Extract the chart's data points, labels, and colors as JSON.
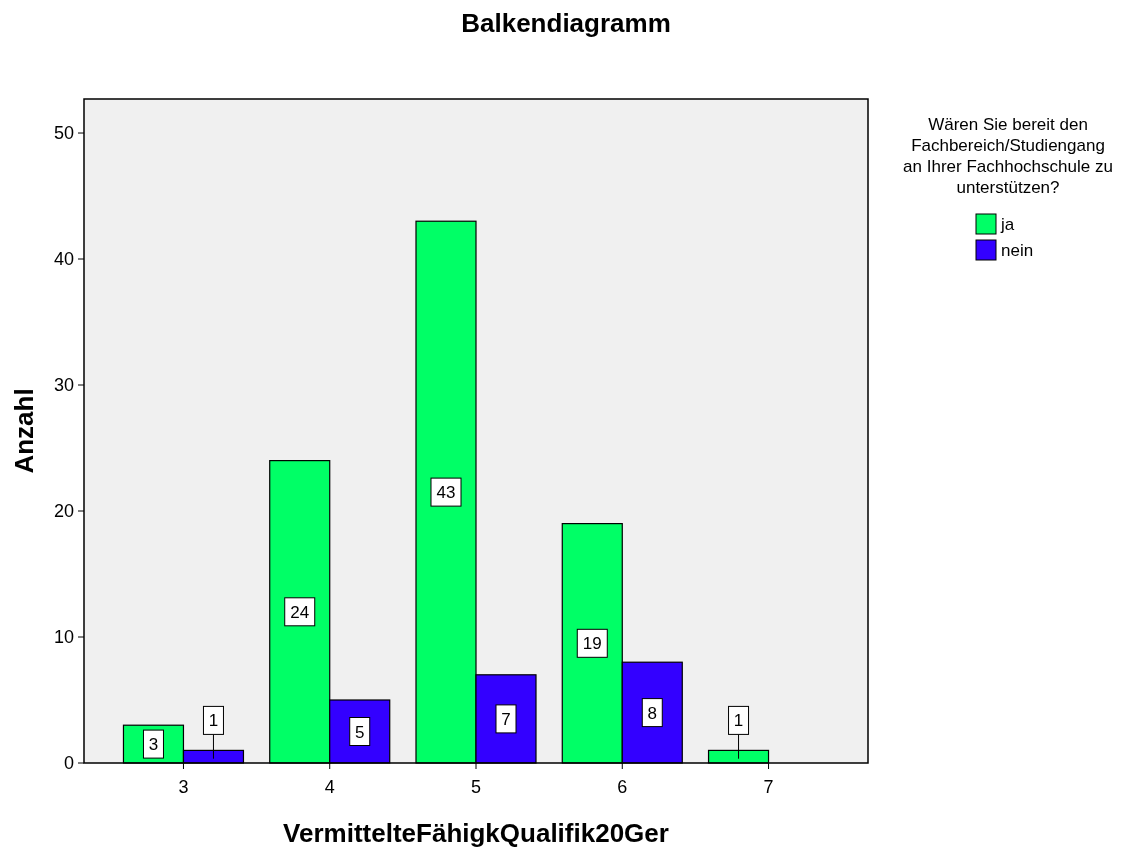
{
  "chart_data": {
    "type": "bar",
    "title": "Balkendiagramm",
    "xlabel": "VermittelteFähigkQualifik20Ger",
    "ylabel": "Anzahl",
    "legend_title": "Wären Sie bereit den\nFachbereich/Studiengang\nan Ihrer Fachhochschule zu\nunterstützen?",
    "categories": [
      "3",
      "4",
      "5",
      "6",
      "7"
    ],
    "series": [
      {
        "name": "ja",
        "color": "#00ff66",
        "values": [
          3,
          24,
          43,
          19,
          1
        ]
      },
      {
        "name": "nein",
        "color": "#3300ff",
        "values": [
          1,
          5,
          7,
          8,
          null
        ]
      }
    ],
    "ylim": [
      0,
      52.7
    ],
    "yticks": [
      0,
      10,
      20,
      30,
      40,
      50
    ],
    "data_labels": true,
    "legend": "top right",
    "grid": false
  }
}
